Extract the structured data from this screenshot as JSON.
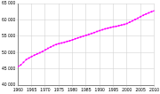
{
  "chart_data": {
    "type": "line",
    "x": [
      1960,
      1961,
      1962,
      1963,
      1964,
      1965,
      1966,
      1967,
      1968,
      1969,
      1970,
      1971,
      1972,
      1973,
      1974,
      1975,
      1976,
      1977,
      1978,
      1979,
      1980,
      1981,
      1982,
      1983,
      1984,
      1985,
      1986,
      1987,
      1988,
      1989,
      1990,
      1991,
      1992,
      1993,
      1994,
      1995,
      1996,
      1997,
      1998,
      1999,
      2000,
      2001,
      2002,
      2003,
      2004,
      2005,
      2006,
      2007,
      2008,
      2009,
      2010
    ],
    "values": [
      45684,
      46163,
      46998,
      47816,
      48311,
      48758,
      49164,
      49548,
      49915,
      50315,
      50772,
      51251,
      51701,
      52118,
      52460,
      52699,
      52909,
      53145,
      53376,
      53606,
      53880,
      54182,
      54492,
      54772,
      55026,
      55284,
      55547,
      55824,
      56118,
      56423,
      56709,
      56977,
      57240,
      57467,
      57659,
      57844,
      58026,
      58207,
      58398,
      58606,
      58858,
      59267,
      59676,
      60102,
      60505,
      60963,
      61400,
      61795,
      62135,
      62466,
      62765
    ],
    "color": "#ff00ff",
    "marker": "circle",
    "xlim": [
      1960,
      2010
    ],
    "xticks": [
      1960,
      1965,
      1970,
      1975,
      1980,
      1985,
      1990,
      1995,
      2000,
      2005,
      2010
    ],
    "ylim": [
      40000,
      65000
    ],
    "yticks": [
      {
        "value": 40000,
        "label": "40 000"
      },
      {
        "value": 45000,
        "label": "45 000"
      },
      {
        "value": 50000,
        "label": "50 000"
      },
      {
        "value": 55000,
        "label": "55 000"
      },
      {
        "value": 60000,
        "label": "60 000"
      },
      {
        "value": 65000,
        "label": "65 000"
      }
    ],
    "grid": true
  }
}
